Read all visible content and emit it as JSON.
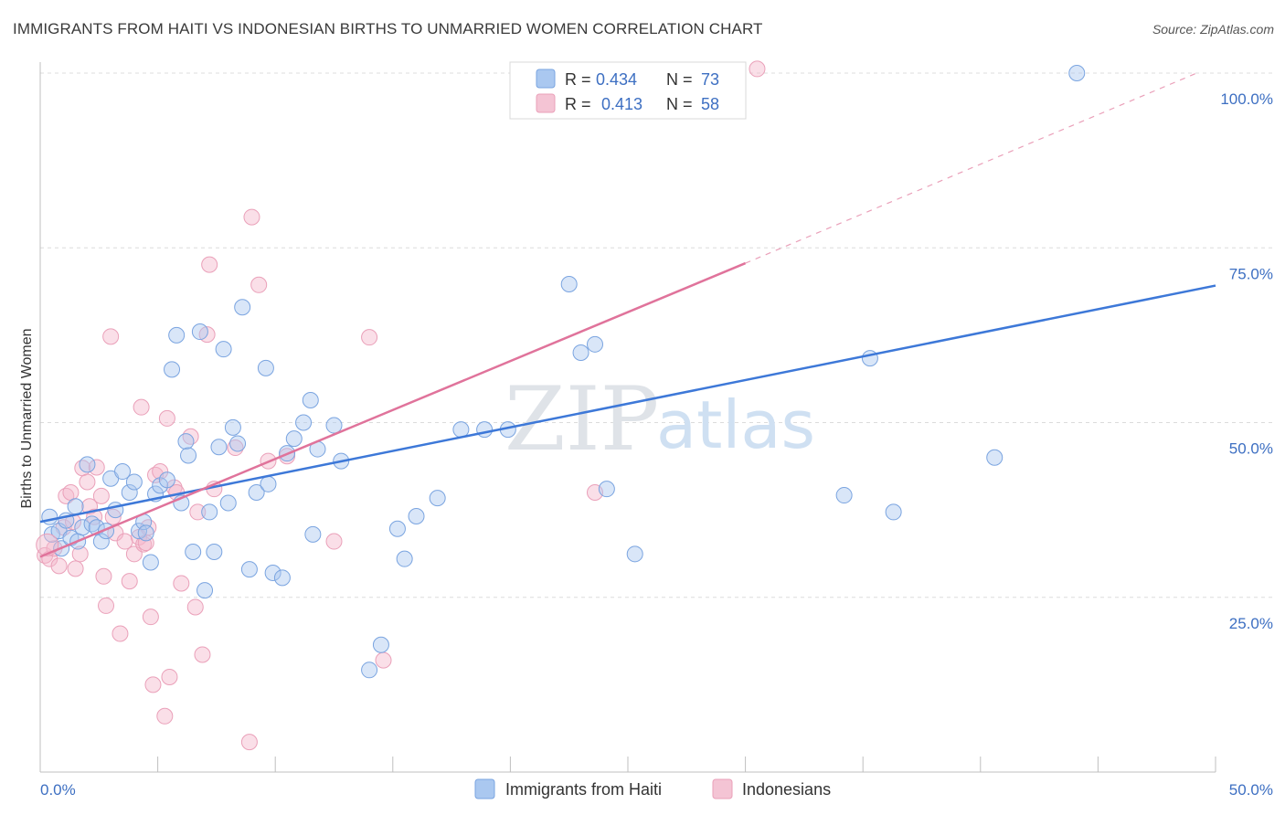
{
  "title": "IMMIGRANTS FROM HAITI VS INDONESIAN BIRTHS TO UNMARRIED WOMEN CORRELATION CHART",
  "source": "Source: ZipAtlas.com",
  "watermark": {
    "zip": "ZIP",
    "atlas": "atlas"
  },
  "colors": {
    "blue": "#3d78d8",
    "blue_fill": "#aac8f0",
    "pink": "#e0739b",
    "pink_fill": "#f4b8cc",
    "tick_text": "#3d6fc2"
  },
  "stats": [
    {
      "r_label": "R =",
      "r_value": "0.434",
      "n_label": "N =",
      "n_value": "73"
    },
    {
      "r_label": "R =",
      "r_value": "0.413",
      "n_label": "N =",
      "n_value": "58"
    }
  ],
  "chart_data": {
    "type": "scatter",
    "title": "IMMIGRANTS FROM HAITI VS INDONESIAN BIRTHS TO UNMARRIED WOMEN CORRELATION CHART",
    "xlabel": "",
    "ylabel": "Births to Unmarried Women",
    "xlim": [
      0,
      50
    ],
    "ylim": [
      0,
      100
    ],
    "x_tick_labels": [
      {
        "value": 0,
        "label": "0.0%"
      },
      {
        "value": 50,
        "label": "50.0%"
      }
    ],
    "y_tick_labels": [
      {
        "value": 25,
        "label": "25.0%"
      },
      {
        "value": 50,
        "label": "50.0%"
      },
      {
        "value": 75,
        "label": "75.0%"
      },
      {
        "value": 100,
        "label": "100.0%"
      }
    ],
    "legend": [
      "Immigrants from Haiti",
      "Indonesians"
    ],
    "series": [
      {
        "name": "Immigrants from Haiti",
        "color": "#3d78d8",
        "trend": {
          "x0": 0,
          "y0": 35.8,
          "x1": 50,
          "y1": 69.6
        },
        "points": [
          [
            0.4,
            36.5
          ],
          [
            0.5,
            34
          ],
          [
            0.8,
            34.5
          ],
          [
            0.9,
            32
          ],
          [
            1.1,
            36
          ],
          [
            1.3,
            33.5
          ],
          [
            1.5,
            38
          ],
          [
            1.6,
            33
          ],
          [
            1.8,
            35
          ],
          [
            2,
            44
          ],
          [
            2.2,
            35.5
          ],
          [
            2.4,
            35
          ],
          [
            2.6,
            33
          ],
          [
            2.8,
            34.5
          ],
          [
            3,
            42
          ],
          [
            3.2,
            37.5
          ],
          [
            3.5,
            43
          ],
          [
            3.8,
            40
          ],
          [
            4,
            41.5
          ],
          [
            4.2,
            34.5
          ],
          [
            4.4,
            35.8
          ],
          [
            4.5,
            34.2
          ],
          [
            4.7,
            30
          ],
          [
            4.9,
            39.8
          ],
          [
            5.1,
            41
          ],
          [
            5.4,
            41.8
          ],
          [
            5.6,
            57.6
          ],
          [
            5.8,
            62.5
          ],
          [
            6,
            38.5
          ],
          [
            6.2,
            47.3
          ],
          [
            6.3,
            45.3
          ],
          [
            6.5,
            31.5
          ],
          [
            6.8,
            63
          ],
          [
            7,
            26
          ],
          [
            7.2,
            37.2
          ],
          [
            7.4,
            31.5
          ],
          [
            7.6,
            46.5
          ],
          [
            7.8,
            60.5
          ],
          [
            8,
            38.5
          ],
          [
            8.2,
            49.3
          ],
          [
            8.4,
            47
          ],
          [
            8.6,
            66.5
          ],
          [
            8.9,
            29
          ],
          [
            9.2,
            40
          ],
          [
            9.6,
            57.8
          ],
          [
            9.7,
            41.2
          ],
          [
            9.9,
            28.5
          ],
          [
            10.3,
            27.8
          ],
          [
            10.5,
            45.6
          ],
          [
            10.8,
            47.7
          ],
          [
            11.2,
            50
          ],
          [
            11.5,
            53.2
          ],
          [
            11.6,
            34
          ],
          [
            11.8,
            46.2
          ],
          [
            12.5,
            49.6
          ],
          [
            12.8,
            44.5
          ],
          [
            14,
            14.6
          ],
          [
            14.5,
            18.2
          ],
          [
            15.2,
            34.8
          ],
          [
            15.5,
            30.5
          ],
          [
            16,
            36.6
          ],
          [
            16.9,
            39.2
          ],
          [
            17.9,
            49
          ],
          [
            18.9,
            49
          ],
          [
            19.9,
            49
          ],
          [
            22.5,
            69.8
          ],
          [
            23,
            60
          ],
          [
            23.6,
            61.2
          ],
          [
            24.1,
            40.5
          ],
          [
            25.3,
            31.2
          ],
          [
            34.2,
            39.6
          ],
          [
            35.3,
            59.2
          ],
          [
            36.3,
            37.2
          ],
          [
            40.6,
            45
          ],
          [
            44.1,
            100
          ]
        ]
      },
      {
        "name": "Indonesians",
        "color": "#e0739b",
        "trend": {
          "x0": 0,
          "y0": 30.8,
          "x1": 30,
          "y1": 72.8,
          "dash_to_x": 49.2,
          "dash_to_y": 100
        },
        "points": [
          [
            0.2,
            31
          ],
          [
            0.4,
            30.5
          ],
          [
            0.6,
            32
          ],
          [
            0.8,
            29.5
          ],
          [
            1,
            35
          ],
          [
            1.1,
            39.5
          ],
          [
            1.3,
            40
          ],
          [
            1.4,
            35.8
          ],
          [
            1.5,
            29.1
          ],
          [
            1.7,
            31.2
          ],
          [
            1.8,
            43.5
          ],
          [
            2,
            41.5
          ],
          [
            2.1,
            38
          ],
          [
            2.3,
            36.5
          ],
          [
            2.4,
            43.6
          ],
          [
            2.6,
            39.5
          ],
          [
            2.7,
            28
          ],
          [
            2.8,
            23.8
          ],
          [
            3,
            62.3
          ],
          [
            3.1,
            36.5
          ],
          [
            3.2,
            34.2
          ],
          [
            3.4,
            19.8
          ],
          [
            3.6,
            33
          ],
          [
            3.8,
            27.3
          ],
          [
            4,
            31.2
          ],
          [
            4.2,
            33.6
          ],
          [
            4.3,
            52.2
          ],
          [
            4.4,
            32.6
          ],
          [
            4.5,
            32.8
          ],
          [
            4.6,
            35
          ],
          [
            4.7,
            22.2
          ],
          [
            4.8,
            12.5
          ],
          [
            4.9,
            42.5
          ],
          [
            5.1,
            43
          ],
          [
            5.3,
            8
          ],
          [
            5.4,
            50.6
          ],
          [
            5.5,
            13.6
          ],
          [
            5.7,
            40.7
          ],
          [
            5.8,
            40
          ],
          [
            6,
            27
          ],
          [
            6.4,
            48
          ],
          [
            6.6,
            23.6
          ],
          [
            6.7,
            37.2
          ],
          [
            6.9,
            16.8
          ],
          [
            7.1,
            62.6
          ],
          [
            7.2,
            72.6
          ],
          [
            7.4,
            40.5
          ],
          [
            8.3,
            46.4
          ],
          [
            8.9,
            4.3
          ],
          [
            9,
            79.4
          ],
          [
            9.3,
            69.7
          ],
          [
            9.7,
            44.5
          ],
          [
            10.5,
            45.2
          ],
          [
            12.5,
            33
          ],
          [
            14,
            62.2
          ],
          [
            14.6,
            16
          ],
          [
            23.6,
            40
          ],
          [
            30.5,
            100.6
          ]
        ]
      }
    ]
  }
}
